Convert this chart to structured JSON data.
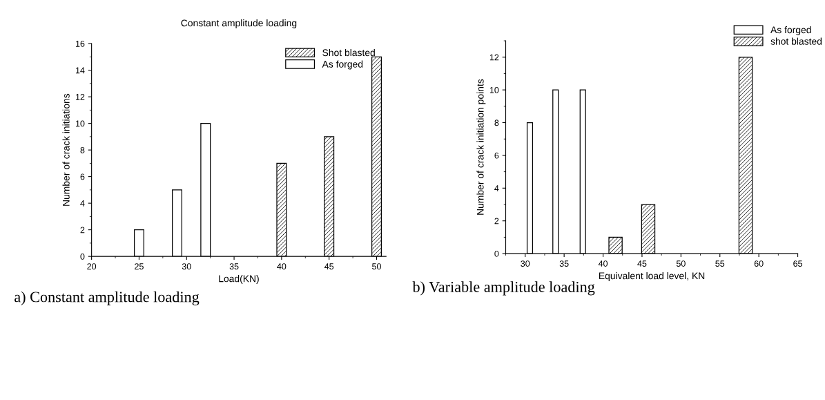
{
  "chart_data": [
    {
      "type": "bar",
      "title": "Constant amplitude loading",
      "xlabel": "Load(KN)",
      "ylabel": "Number of crack initiations",
      "xlim": [
        20,
        51
      ],
      "xticks": [
        20,
        25,
        30,
        35,
        40,
        45,
        50
      ],
      "ylim": [
        0,
        16
      ],
      "yticks": [
        0,
        2,
        4,
        6,
        8,
        10,
        12,
        14,
        16
      ],
      "legend": "top right",
      "grid": false,
      "series": [
        {
          "name": "Shot blasted",
          "color": "#000000",
          "x": [
            40,
            45,
            50
          ],
          "values": [
            7,
            9,
            15
          ]
        },
        {
          "name": "As forged",
          "color": "#ffffff",
          "x": [
            25,
            29,
            32
          ],
          "values": [
            2,
            5,
            10
          ]
        }
      ],
      "annotations": [
        "a) Constant amplitude loading"
      ]
    },
    {
      "type": "bar",
      "xlabel": "Equivalent load level, KN",
      "ylabel": "Number of crack initiation points",
      "xlim": [
        27.5,
        65
      ],
      "xticks": [
        30,
        35,
        40,
        45,
        50,
        55,
        60,
        65
      ],
      "ylim": [
        0,
        13
      ],
      "yticks": [
        0,
        2,
        4,
        6,
        8,
        10,
        12
      ],
      "legend": "top",
      "grid": false,
      "series": [
        {
          "name": "As forged",
          "color": "#ffffff",
          "x": [
            30.6,
            33.9,
            37.4
          ],
          "values": [
            8,
            10,
            10
          ]
        },
        {
          "name": "shot blasted",
          "color": "#000000",
          "x": [
            41.6,
            45.8,
            58.3
          ],
          "values": [
            1,
            3,
            12
          ]
        }
      ],
      "annotations": [
        "b) Variable amplitude loading"
      ]
    }
  ]
}
